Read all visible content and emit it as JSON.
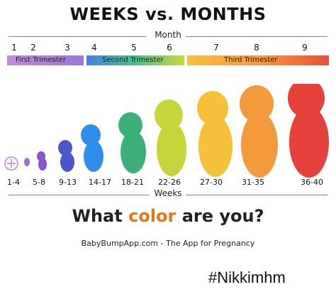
{
  "title": "WEEKS vs. MONTHS",
  "month_caption": "Month",
  "months": [
    "1",
    "2",
    "3",
    "4",
    "5",
    "6",
    "7",
    "8",
    "9"
  ],
  "trimesters": [
    {
      "label": "First Trimester",
      "color": "#a070c8"
    },
    {
      "label": "Second Trimester",
      "color": "#4fa6d8"
    },
    {
      "label": "Third Trimester",
      "color": "#f09060"
    }
  ],
  "weeks": [
    "1-4",
    "5-8",
    "9-13",
    "14-17",
    "18-21",
    "22-26",
    "27-30",
    "31-35",
    "36-40"
  ],
  "weeks_caption": "Weeks",
  "silhouette_colors": [
    "#9b59b6",
    "#7b4fd0",
    "#3f51b5",
    "#2196f3",
    "#4caf50",
    "#cddc39",
    "#ffc107",
    "#ff9800",
    "#e53935"
  ],
  "tagline": {
    "before": "What ",
    "highlight": "color",
    "after": " are you?"
  },
  "footer": "BabyBumpApp.com - The App for Pregnancy",
  "hashtag": "#Nikkimhm"
}
